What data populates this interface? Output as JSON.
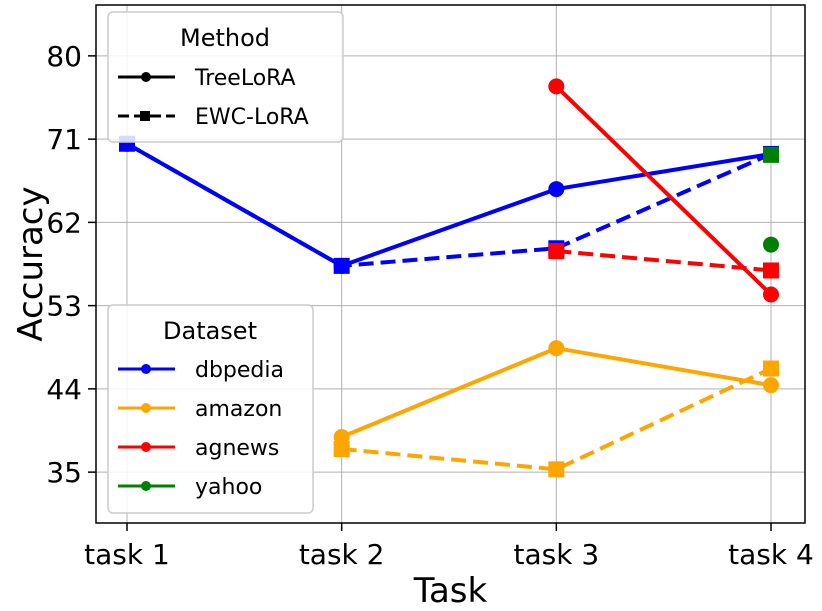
{
  "chart_data": {
    "type": "line",
    "xlabel": "Task",
    "ylabel": "Accuracy",
    "categories": [
      "task 1",
      "task 2",
      "task 3",
      "task 4"
    ],
    "yticks": [
      35,
      44,
      53,
      62,
      71,
      80
    ],
    "ylim": [
      29.5,
      85.5
    ],
    "grid": true,
    "method_legend": {
      "title": "Method",
      "placement": "top-left",
      "entries": [
        {
          "label": "TreeLoRA",
          "linestyle": "solid",
          "marker": "circle"
        },
        {
          "label": "EWC-LoRA",
          "linestyle": "dashed",
          "marker": "square"
        }
      ]
    },
    "dataset_legend": {
      "title": "Dataset",
      "placement": "lower-left",
      "entries": [
        {
          "label": "dbpedia",
          "color": "#0000ff"
        },
        {
          "label": "amazon",
          "color": "#ffa500"
        },
        {
          "label": "agnews",
          "color": "#ff0000"
        },
        {
          "label": "yahoo",
          "color": "#008000"
        }
      ]
    },
    "series": [
      {
        "dataset": "dbpedia",
        "method": "TreeLoRA",
        "color": "#0000ff",
        "values": [
          70.5,
          57.3,
          65.6,
          69.4
        ]
      },
      {
        "dataset": "dbpedia",
        "method": "EWC-LoRA",
        "color": "#0000ff",
        "values": [
          70.5,
          57.3,
          59.2,
          69.4
        ]
      },
      {
        "dataset": "amazon",
        "method": "TreeLoRA",
        "color": "#ffa500",
        "values": [
          null,
          38.8,
          48.4,
          44.4
        ]
      },
      {
        "dataset": "amazon",
        "method": "EWC-LoRA",
        "color": "#ffa500",
        "values": [
          null,
          37.5,
          35.3,
          46.2
        ]
      },
      {
        "dataset": "agnews",
        "method": "TreeLoRA",
        "color": "#ff0000",
        "values": [
          null,
          null,
          76.7,
          54.2
        ]
      },
      {
        "dataset": "agnews",
        "method": "EWC-LoRA",
        "color": "#ff0000",
        "values": [
          null,
          null,
          58.9,
          56.8
        ]
      },
      {
        "dataset": "yahoo",
        "method": "TreeLoRA",
        "color": "#008000",
        "values": [
          null,
          null,
          null,
          59.6
        ]
      },
      {
        "dataset": "yahoo",
        "method": "EWC-LoRA",
        "color": "#008000",
        "values": [
          null,
          null,
          null,
          69.3
        ]
      }
    ]
  }
}
